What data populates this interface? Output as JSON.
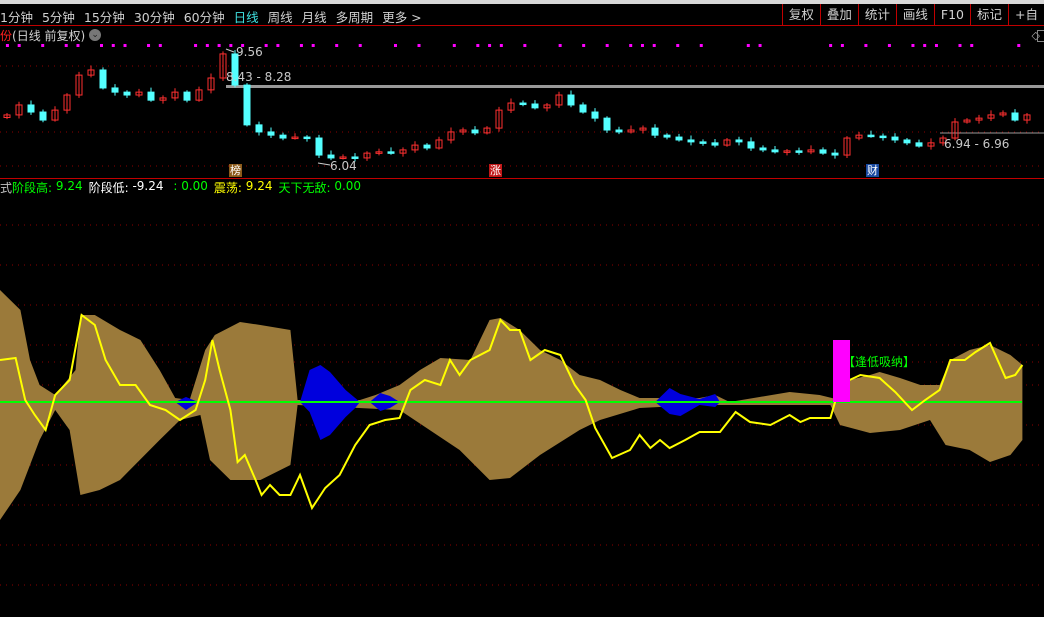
{
  "menu": {
    "periods": [
      "1分钟",
      "5分钟",
      "15分钟",
      "30分钟",
      "60分钟",
      "日线",
      "周线",
      "月线",
      "多周期",
      "更多 >"
    ],
    "active": "日线",
    "tools": [
      "复权",
      "叠加",
      "统计",
      "画线",
      "F10",
      "标记",
      "+自"
    ]
  },
  "info": {
    "stock_name": "份",
    "period": "(日线 前复权)",
    "dropdown_icon": "chevron-down-icon"
  },
  "price_labels": {
    "high": "9.56",
    "low": "6.04",
    "range1": "8.43 - 8.28",
    "range2": "6.94 - 6.96"
  },
  "markers": [
    {
      "text": "榜",
      "color": "#8b5a1a"
    },
    {
      "text": "涨",
      "color": "#c01818"
    },
    {
      "text": "财",
      "color": "#1a4aa0"
    }
  ],
  "indicator": {
    "prefix": "式",
    "items": [
      {
        "label": "阶段高: ",
        "value": "9.24",
        "color": "#00ff00"
      },
      {
        "label": "阶段低: ",
        "value": "-9.24",
        "color": "#ffffff"
      },
      {
        "label": " : ",
        "value": "0.00",
        "color": "#00ff00"
      },
      {
        "label": "震荡: ",
        "value": "9.24",
        "color": "#ffff00"
      },
      {
        "label": "天下无敌: ",
        "value": "0.00",
        "color": "#00ff00"
      }
    ],
    "signal_label": "【逢低吸纳】"
  },
  "colors": {
    "up": "#ff3030",
    "down": "#54ffff",
    "band": "#9b7a3a",
    "blue": "#0000dd",
    "line": "#ffff00",
    "zero": "#00ff00",
    "signal": "#ff00ff",
    "grid": "#8b0000"
  },
  "chart_data": {
    "type": "candlestick",
    "closes": [
      7.6,
      7.91,
      7.69,
      7.44,
      7.75,
      8.22,
      8.84,
      9.0,
      8.44,
      8.31,
      8.22,
      8.31,
      8.06,
      8.13,
      8.31,
      8.06,
      8.38,
      8.75,
      9.5,
      8.53,
      7.29,
      7.07,
      6.97,
      6.88,
      6.91,
      6.88,
      6.35,
      6.26,
      6.29,
      6.26,
      6.41,
      6.45,
      6.41,
      6.51,
      6.66,
      6.57,
      6.82,
      7.07,
      7.13,
      7.04,
      7.19,
      7.75,
      7.97,
      7.94,
      7.82,
      7.91,
      8.22,
      7.91,
      7.69,
      7.5,
      7.13,
      7.07,
      7.13,
      7.19,
      6.97,
      6.91,
      6.82,
      6.76,
      6.73,
      6.66,
      6.82,
      6.76,
      6.57,
      6.51,
      6.45,
      6.48,
      6.45,
      6.51,
      6.41,
      6.35,
      6.88,
      6.97,
      6.94,
      6.91,
      6.82,
      6.73,
      6.63,
      6.73,
      6.88,
      7.38,
      7.44,
      7.5,
      7.6,
      7.66,
      7.44,
      7.6
    ],
    "signal_dots": [
      0,
      1,
      3,
      5,
      6,
      8,
      9,
      10,
      12,
      13,
      16,
      17,
      18,
      19,
      20,
      22,
      23,
      25,
      26,
      28,
      30,
      33,
      35,
      38,
      40,
      41,
      42,
      44,
      47,
      49,
      51,
      53,
      54,
      55,
      57,
      59,
      63,
      64,
      70,
      71,
      73,
      75,
      77,
      78,
      79,
      81,
      82,
      86
    ],
    "indicator": {
      "zero": 0,
      "upper": [
        [
          0,
          11.2
        ],
        [
          1.7,
          9.2
        ],
        [
          2.5,
          4.2
        ],
        [
          3.3,
          1.7
        ],
        [
          4.6,
          0.7
        ],
        [
          6.3,
          3.2
        ],
        [
          6.7,
          8.7
        ],
        [
          7.9,
          8.7
        ],
        [
          10,
          7.2
        ],
        [
          11.7,
          6.2
        ],
        [
          13.3,
          3.2
        ],
        [
          14.6,
          0.4
        ],
        [
          15.8,
          0.2
        ],
        [
          17.1,
          5.2
        ],
        [
          17.9,
          6.7
        ],
        [
          20,
          8
        ],
        [
          21.7,
          7.7
        ],
        [
          24.2,
          7.2
        ],
        [
          24.8,
          0.2
        ],
        [
          30,
          0.2
        ],
        [
          31.3,
          0.7
        ],
        [
          33.3,
          1.7
        ],
        [
          35,
          3.2
        ],
        [
          36.7,
          4.4
        ],
        [
          39.2,
          4.2
        ],
        [
          40.8,
          8.2
        ],
        [
          41.7,
          8.4
        ],
        [
          43.3,
          7.2
        ],
        [
          45,
          5.2
        ],
        [
          46.7,
          4.2
        ],
        [
          48.3,
          2.7
        ],
        [
          50,
          2.2
        ],
        [
          51.7,
          1.2
        ],
        [
          53.3,
          0.4
        ],
        [
          58.3,
          0.4
        ],
        [
          59.6,
          0.7
        ],
        [
          60.8,
          0
        ],
        [
          63.3,
          0.5
        ],
        [
          65.8,
          1
        ],
        [
          68.3,
          0.7
        ],
        [
          70,
          0.2
        ],
        [
          70.8,
          2.2
        ],
        [
          72.5,
          2.7
        ],
        [
          73.3,
          3
        ],
        [
          75,
          2.4
        ],
        [
          76.7,
          1.7
        ],
        [
          78.3,
          1.7
        ],
        [
          79.2,
          4.2
        ],
        [
          80.8,
          5.2
        ],
        [
          82.5,
          5.7
        ],
        [
          84.2,
          4.7
        ],
        [
          85.2,
          3.7
        ]
      ],
      "lower": [
        [
          0,
          -11.8
        ],
        [
          1.7,
          -8.8
        ],
        [
          3.3,
          -3.8
        ],
        [
          4.6,
          -0.8
        ],
        [
          5.8,
          -2.8
        ],
        [
          6.7,
          -9.3
        ],
        [
          8.3,
          -8.8
        ],
        [
          10,
          -7.8
        ],
        [
          13.3,
          -3.8
        ],
        [
          15,
          -1.8
        ],
        [
          16.7,
          -1.3
        ],
        [
          17.5,
          -5.8
        ],
        [
          19.2,
          -7.8
        ],
        [
          21.7,
          -7.8
        ],
        [
          24.2,
          -6.3
        ],
        [
          24.8,
          -0.3
        ],
        [
          33.3,
          -0.8
        ],
        [
          35.8,
          -2.8
        ],
        [
          38.3,
          -4.8
        ],
        [
          40.8,
          -7.8
        ],
        [
          42.5,
          -7.6
        ],
        [
          45,
          -5.3
        ],
        [
          48.3,
          -2.8
        ],
        [
          50,
          -1.8
        ],
        [
          53.3,
          -0.6
        ],
        [
          58.3,
          -0.3
        ],
        [
          69.2,
          -0.3
        ],
        [
          70,
          -2.3
        ],
        [
          72.5,
          -3.1
        ],
        [
          75,
          -2.8
        ],
        [
          77.5,
          -1.8
        ],
        [
          78.8,
          -4.3
        ],
        [
          80.8,
          -4.8
        ],
        [
          82.5,
          -6
        ],
        [
          84.2,
          -5.3
        ],
        [
          85.2,
          -3.8
        ]
      ],
      "blue": [
        [
          [
            14.6,
            0,
            0
          ],
          [
            15.5,
            0.5,
            -0.8
          ],
          [
            16.5,
            0,
            0
          ]
        ],
        [
          [
            25,
            0,
            0
          ],
          [
            25.8,
            3.2,
            -1
          ],
          [
            26.7,
            3.7,
            -3.8
          ],
          [
            27.5,
            3,
            -3.3
          ],
          [
            28.8,
            1.2,
            -1.5
          ],
          [
            29.6,
            0.4,
            -0.6
          ],
          [
            30,
            0,
            0
          ]
        ],
        [
          [
            30.8,
            0,
            0
          ],
          [
            31.7,
            0.9,
            -0.9
          ],
          [
            32.5,
            0.6,
            -0.6
          ],
          [
            33.3,
            0,
            0
          ]
        ],
        [
          [
            54.6,
            0,
            0
          ],
          [
            55.8,
            1.4,
            -1.2
          ],
          [
            56.7,
            0.8,
            -1.4
          ],
          [
            58.3,
            0.3,
            -0.3
          ],
          [
            59.6,
            0.8,
            -0.5
          ],
          [
            60,
            0,
            0
          ]
        ]
      ],
      "line": [
        [
          0,
          4.2
        ],
        [
          1.3,
          4.4
        ],
        [
          2.1,
          0.2
        ],
        [
          2.9,
          -1.3
        ],
        [
          3.8,
          -2.8
        ],
        [
          4.6,
          0.7
        ],
        [
          5.8,
          2.2
        ],
        [
          6.8,
          8.7
        ],
        [
          7.9,
          7.7
        ],
        [
          8.8,
          4.2
        ],
        [
          10,
          1.7
        ],
        [
          11.3,
          1.7
        ],
        [
          12.5,
          -0.3
        ],
        [
          13.8,
          -0.8
        ],
        [
          15,
          -1.8
        ],
        [
          16.3,
          -0.8
        ],
        [
          17.1,
          2.2
        ],
        [
          17.7,
          6.2
        ],
        [
          18.3,
          3.2
        ],
        [
          19.2,
          -0.8
        ],
        [
          19.8,
          -6
        ],
        [
          20.4,
          -5.3
        ],
        [
          21.3,
          -7.8
        ],
        [
          21.8,
          -9.3
        ],
        [
          22.5,
          -8.3
        ],
        [
          23.3,
          -9.3
        ],
        [
          24.2,
          -9.3
        ],
        [
          25,
          -7.3
        ],
        [
          26,
          -10.6
        ],
        [
          27.1,
          -8.6
        ],
        [
          28.3,
          -7.3
        ],
        [
          29.6,
          -4.3
        ],
        [
          30.8,
          -2.3
        ],
        [
          32.1,
          -1.8
        ],
        [
          33.3,
          -1.6
        ],
        [
          34.2,
          1.2
        ],
        [
          35.4,
          2.2
        ],
        [
          36.7,
          1.7
        ],
        [
          37.5,
          4.2
        ],
        [
          38.3,
          2.7
        ],
        [
          39.2,
          4.2
        ],
        [
          40.8,
          5.2
        ],
        [
          41.7,
          8.2
        ],
        [
          42.5,
          7.2
        ],
        [
          43.3,
          7.2
        ],
        [
          44.2,
          4.2
        ],
        [
          45.4,
          5.2
        ],
        [
          46.7,
          4.7
        ],
        [
          47.9,
          1.7
        ],
        [
          48.8,
          0.2
        ],
        [
          49.6,
          -2.6
        ],
        [
          51,
          -5.6
        ],
        [
          52.5,
          -4.8
        ],
        [
          53.3,
          -3.3
        ],
        [
          54.2,
          -4.6
        ],
        [
          55,
          -3.8
        ],
        [
          55.8,
          -4.6
        ],
        [
          57.1,
          -3.8
        ],
        [
          58.3,
          -3
        ],
        [
          60,
          -3
        ],
        [
          61.3,
          -1
        ],
        [
          62.5,
          -2
        ],
        [
          64.2,
          -2.3
        ],
        [
          65.8,
          -1.3
        ],
        [
          66.7,
          -2
        ],
        [
          67.5,
          -1.6
        ],
        [
          69.2,
          -1.6
        ],
        [
          70,
          1.7
        ],
        [
          70.8,
          2.2
        ],
        [
          71.7,
          2.7
        ],
        [
          73.3,
          2.4
        ],
        [
          74.6,
          1
        ],
        [
          76,
          -0.8
        ],
        [
          77.1,
          0.2
        ],
        [
          78.3,
          1.2
        ],
        [
          79.2,
          4.2
        ],
        [
          80.4,
          4.2
        ],
        [
          81.3,
          5
        ],
        [
          82.5,
          5.9
        ],
        [
          83.8,
          2.4
        ],
        [
          84.6,
          2.7
        ],
        [
          85.2,
          3.7
        ]
      ],
      "signal": {
        "index": 70,
        "value": 6.2
      }
    }
  }
}
